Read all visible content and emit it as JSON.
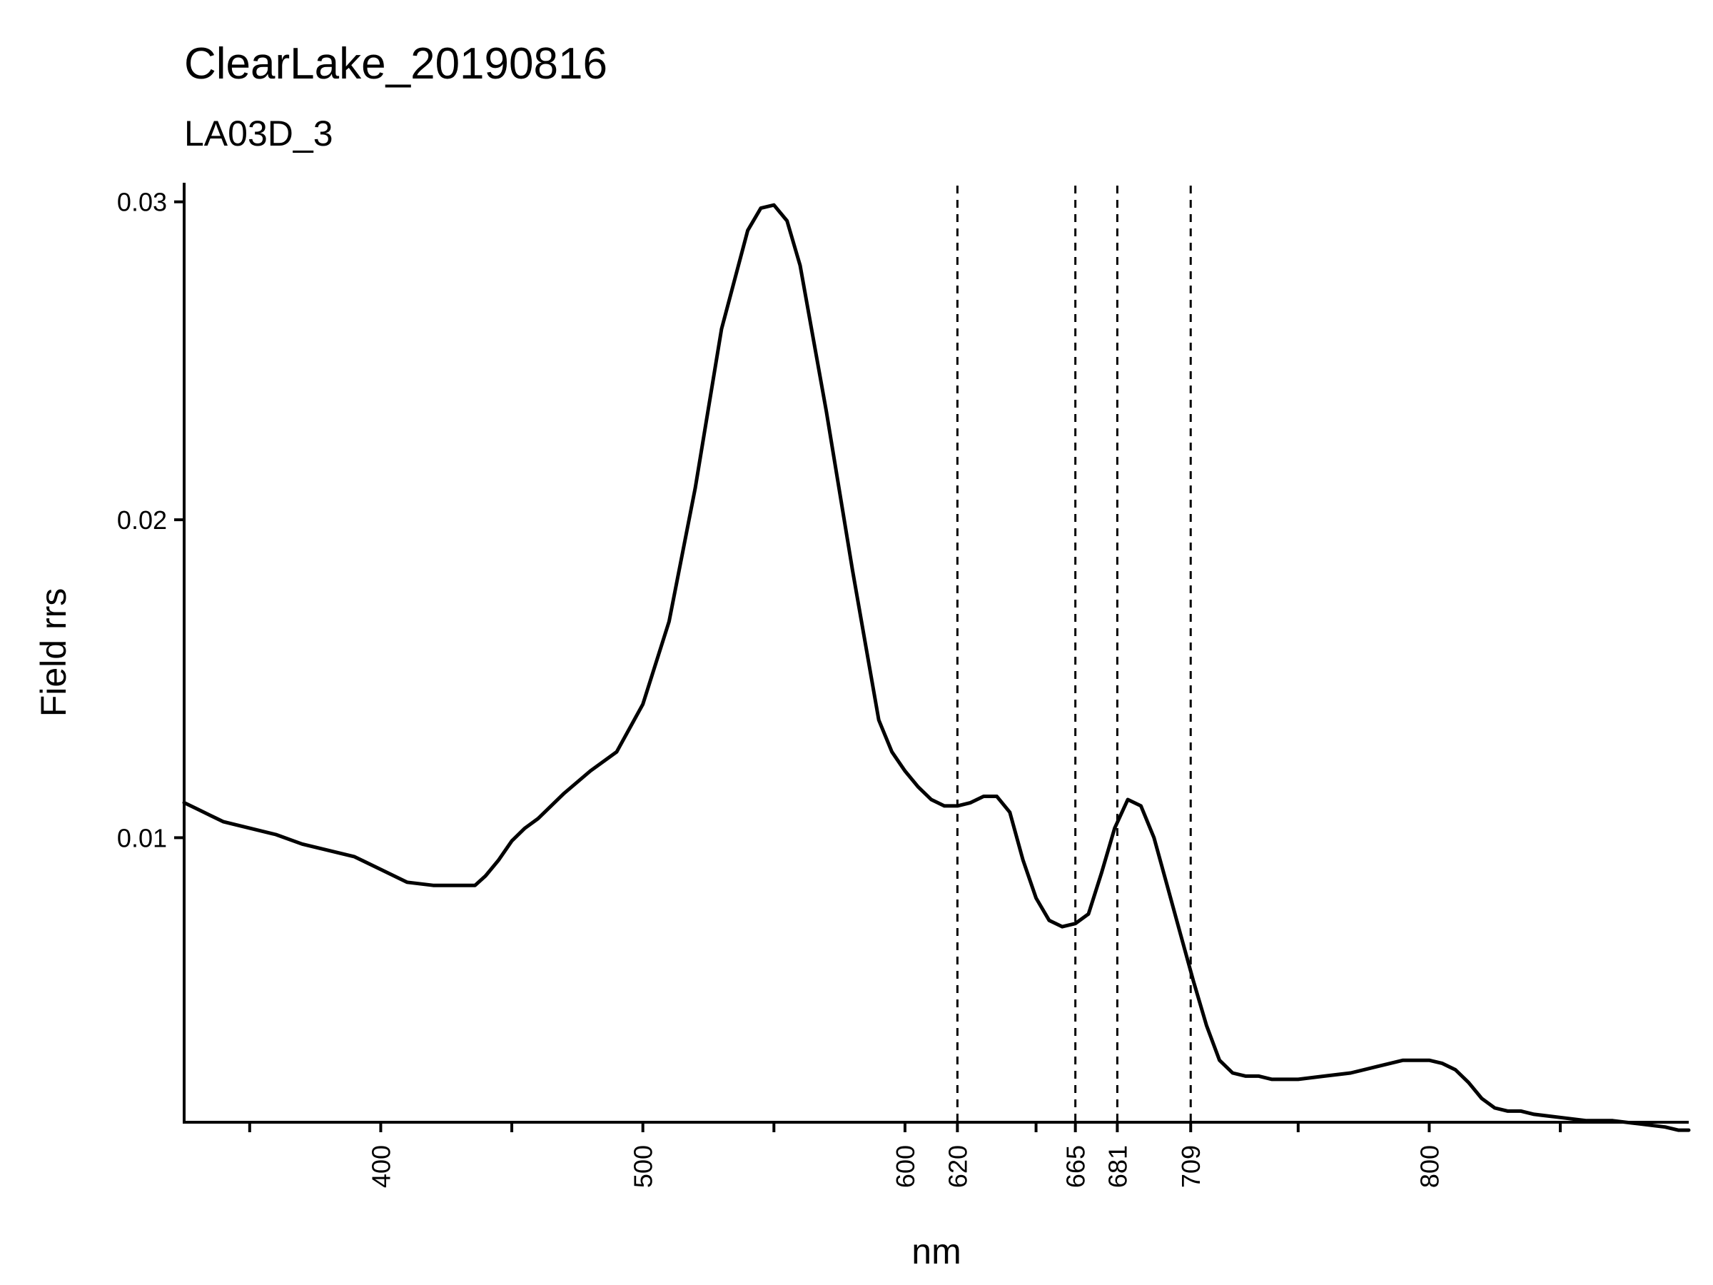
{
  "chart_data": {
    "type": "line",
    "title": "ClearLake_20190816",
    "subtitle": "LA03D_3",
    "xlabel": "nm",
    "ylabel": "Field rrs",
    "xlim": [
      325,
      899
    ],
    "ylim": [
      0.00105,
      0.0306
    ],
    "x_major_ticks": [
      400,
      500,
      600,
      620,
      665,
      681,
      709,
      800
    ],
    "x_minor_ticks": [
      350,
      450,
      550,
      650,
      750,
      850
    ],
    "y_ticks": [
      0.01,
      0.02,
      0.03
    ],
    "y_tick_labels": [
      "0.01",
      "0.02",
      "0.03"
    ],
    "reference_lines": [
      620,
      665,
      681,
      709
    ],
    "grid": false,
    "series": [
      {
        "x": [
          325,
          330,
          335,
          340,
          345,
          350,
          360,
          370,
          380,
          390,
          400,
          410,
          420,
          430,
          436,
          440,
          445,
          450,
          455,
          460,
          470,
          480,
          490,
          500,
          510,
          520,
          530,
          540,
          545,
          550,
          555,
          560,
          570,
          580,
          590,
          595,
          600,
          605,
          610,
          615,
          620,
          625,
          630,
          635,
          640,
          645,
          650,
          655,
          660,
          665,
          670,
          675,
          680,
          685,
          690,
          695,
          700,
          705,
          710,
          715,
          720,
          725,
          730,
          735,
          740,
          745,
          750,
          760,
          770,
          780,
          790,
          800,
          805,
          810,
          815,
          820,
          825,
          830,
          835,
          840,
          850,
          860,
          870,
          880,
          890,
          895,
          899
        ],
        "y": [
          0.0111,
          0.0109,
          0.0107,
          0.0105,
          0.0104,
          0.0103,
          0.0101,
          0.0098,
          0.0096,
          0.0094,
          0.009,
          0.0086,
          0.0085,
          0.0085,
          0.0085,
          0.0088,
          0.0093,
          0.0099,
          0.0103,
          0.0106,
          0.0114,
          0.0121,
          0.0127,
          0.0142,
          0.0168,
          0.021,
          0.026,
          0.0291,
          0.0298,
          0.0299,
          0.0294,
          0.028,
          0.0234,
          0.0184,
          0.0137,
          0.0127,
          0.0121,
          0.0116,
          0.0112,
          0.011,
          0.011,
          0.0111,
          0.0113,
          0.0113,
          0.0108,
          0.0093,
          0.0081,
          0.0074,
          0.0072,
          0.0073,
          0.0076,
          0.0089,
          0.0103,
          0.0112,
          0.011,
          0.01,
          0.0085,
          0.007,
          0.0055,
          0.0041,
          0.003,
          0.0026,
          0.0025,
          0.0025,
          0.0024,
          0.0024,
          0.0024,
          0.0025,
          0.0026,
          0.0028,
          0.003,
          0.003,
          0.0029,
          0.0027,
          0.0023,
          0.0018,
          0.0015,
          0.0014,
          0.0014,
          0.0013,
          0.0012,
          0.0011,
          0.0011,
          0.001,
          0.0009,
          0.0008,
          0.0008
        ]
      }
    ]
  }
}
